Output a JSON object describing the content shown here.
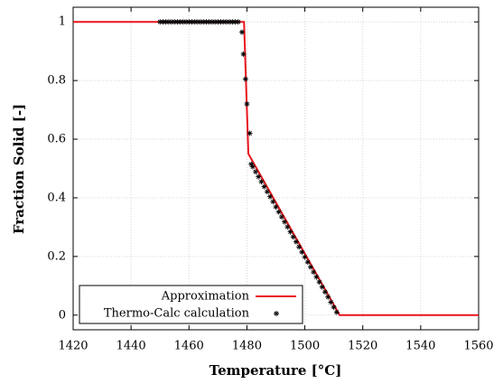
{
  "chart_data": {
    "type": "line",
    "xlabel": "Temperature [°C]",
    "ylabel": "Fraction Solid [-]",
    "xlim": [
      1420,
      1560
    ],
    "ylim": [
      -0.05,
      1.05
    ],
    "xticks": [
      1420,
      1440,
      1460,
      1480,
      1500,
      1520,
      1540,
      1560
    ],
    "yticks": [
      0,
      0.2,
      0.4,
      0.6,
      0.8,
      1
    ],
    "grid": true,
    "legend": "lower left",
    "series": [
      {
        "name": "Approximation",
        "type": "line",
        "color": "#e8141c",
        "x": [
          1420,
          1479,
          1480.5,
          1512,
          1560
        ],
        "y": [
          1,
          1,
          0.55,
          0,
          0
        ]
      },
      {
        "name": "Thermo-Calc calculation",
        "type": "scatter",
        "color": "#000000",
        "x": [
          1450,
          1451,
          1452,
          1453,
          1454,
          1455,
          1456,
          1457,
          1458,
          1459,
          1460,
          1461,
          1462,
          1463,
          1464,
          1465,
          1466,
          1467,
          1468,
          1469,
          1470,
          1471,
          1472,
          1473,
          1474,
          1475,
          1476,
          1477,
          1478.3,
          1478.8,
          1479.5,
          1480,
          1481,
          1481.5,
          1482,
          1483,
          1484,
          1485,
          1486,
          1487,
          1488,
          1489,
          1490,
          1491,
          1492,
          1493,
          1494,
          1495,
          1496,
          1497,
          1498,
          1499,
          1500,
          1501,
          1502,
          1503,
          1504,
          1505,
          1506,
          1507,
          1508,
          1509,
          1510,
          1511
        ],
        "y": [
          1,
          1,
          1,
          1,
          1,
          1,
          1,
          1,
          1,
          1,
          1,
          1,
          1,
          1,
          1,
          1,
          1,
          1,
          1,
          1,
          1,
          1,
          1,
          1,
          1,
          1,
          1,
          1,
          0.965,
          0.89,
          0.805,
          0.72,
          0.62,
          0.515,
          0.506,
          0.489,
          0.472,
          0.455,
          0.438,
          0.421,
          0.404,
          0.387,
          0.369,
          0.352,
          0.335,
          0.318,
          0.301,
          0.284,
          0.267,
          0.25,
          0.233,
          0.215,
          0.198,
          0.181,
          0.164,
          0.147,
          0.13,
          0.113,
          0.096,
          0.079,
          0.062,
          0.044,
          0.027,
          0.01
        ]
      }
    ]
  }
}
